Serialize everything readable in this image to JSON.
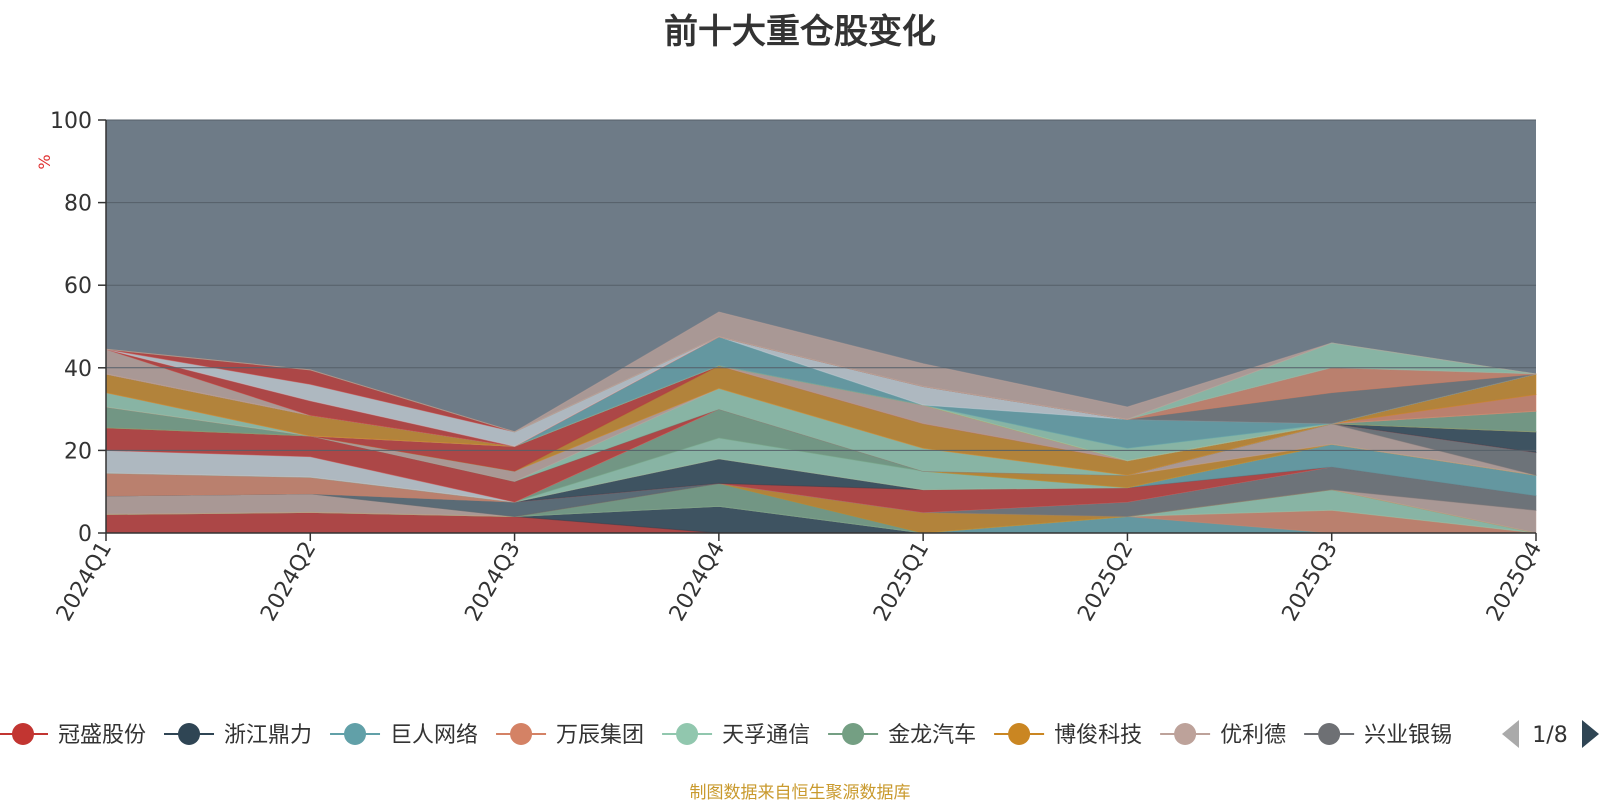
{
  "title": "前十大重仓股变化",
  "footer": "制图数据来自恒生聚源数据库",
  "legend_pager": {
    "text": "1/8"
  },
  "colors": {
    "plot_bg": "#6e7b87",
    "axis": "#333333",
    "unit": "#e03030",
    "footer": "#c99a2e"
  },
  "chart_data": {
    "type": "area",
    "stacked": true,
    "title": "前十大重仓股变化",
    "x": [
      "2024Q1",
      "2024Q2",
      "2024Q3",
      "2024Q4",
      "2025Q1",
      "2025Q2",
      "2025Q3",
      "2025Q4"
    ],
    "ylabel": "%",
    "ylim": [
      0,
      100
    ],
    "yticks": [
      0,
      20,
      40,
      60,
      80,
      100
    ],
    "grid": true,
    "legend_position": "bottom",
    "series": [
      {
        "name": "冠盛股份",
        "color": "#c23531",
        "values": [
          4.5,
          5.0,
          4.0,
          0,
          0,
          0,
          0,
          0
        ]
      },
      {
        "name": "浙江鼎力",
        "color": "#2f4554",
        "values": [
          0,
          0,
          0,
          6.5,
          0,
          0,
          0,
          0
        ]
      },
      {
        "name": "巨人网络",
        "color": "#61a0a8",
        "values": [
          0,
          0,
          0,
          0,
          0,
          4.0,
          0,
          0
        ]
      },
      {
        "name": "万辰集团",
        "color": "#d48265",
        "values": [
          0,
          0,
          0,
          0,
          0,
          0,
          5.5,
          0
        ]
      },
      {
        "name": "天孚通信",
        "color": "#91c7ae",
        "values": [
          0,
          0,
          0,
          0,
          0,
          0,
          5.0,
          0
        ]
      },
      {
        "name": "金龙汽车",
        "color": "#749f83",
        "values": [
          0,
          0,
          0,
          5.5,
          0,
          0,
          0,
          0
        ]
      },
      {
        "name": "博俊科技",
        "color": "#ca8622",
        "values": [
          0,
          0,
          0,
          0,
          5.0,
          0,
          0,
          0
        ]
      },
      {
        "name": "优利德",
        "color": "#bda29a",
        "values": [
          4.5,
          4.5,
          0,
          0,
          0,
          0,
          0,
          5.5
        ]
      },
      {
        "name": "兴业银锡",
        "color": "#6e7074",
        "values": [
          0,
          0,
          0,
          0,
          0,
          3.5,
          5.5,
          3.5
        ]
      },
      {
        "name": "",
        "color": "#546570",
        "values": [
          0,
          0,
          3.5,
          0,
          0,
          0,
          0,
          0
        ]
      },
      {
        "name": "",
        "color": "#c4ccd3",
        "values": [
          0,
          0,
          0,
          0,
          0,
          0,
          0,
          0
        ]
      },
      {
        "name": "",
        "color": "#c23531",
        "values": [
          0,
          0,
          0,
          0,
          5.5,
          3.5,
          0,
          0
        ]
      },
      {
        "name": "",
        "color": "#2f4554",
        "values": [
          0,
          0,
          0,
          6.0,
          0,
          0,
          0,
          0
        ]
      },
      {
        "name": "",
        "color": "#61a0a8",
        "values": [
          0,
          0,
          0,
          0,
          0,
          0,
          5.5,
          5.0
        ]
      },
      {
        "name": "",
        "color": "#d48265",
        "values": [
          5.5,
          4.0,
          0,
          0,
          0,
          0,
          0,
          0
        ]
      },
      {
        "name": "",
        "color": "#91c7ae",
        "values": [
          0,
          0,
          0,
          5.0,
          4.5,
          0,
          0,
          0
        ]
      },
      {
        "name": "",
        "color": "#749f83",
        "values": [
          0,
          0,
          0,
          7.0,
          0,
          0,
          0,
          0
        ]
      },
      {
        "name": "",
        "color": "#ca8622",
        "values": [
          0,
          0,
          0,
          0,
          0,
          3.0,
          0,
          0
        ]
      },
      {
        "name": "",
        "color": "#bda29a",
        "values": [
          0,
          0,
          0,
          0,
          0,
          0,
          5.0,
          0
        ]
      },
      {
        "name": "",
        "color": "#6e7074",
        "values": [
          0,
          0,
          0,
          0,
          0,
          0,
          0,
          5.5
        ]
      },
      {
        "name": "",
        "color": "#c4ccd3",
        "values": [
          5.5,
          5.0,
          0,
          0,
          0,
          0,
          0,
          0
        ]
      },
      {
        "name": "",
        "color": "#c23531",
        "values": [
          5.5,
          5.0,
          5.0,
          0,
          0,
          0,
          0,
          0
        ]
      },
      {
        "name": "",
        "color": "#2f4554",
        "values": [
          0,
          0,
          0,
          0,
          0,
          0,
          0,
          5.0
        ]
      },
      {
        "name": "",
        "color": "#91c7ae",
        "values": [
          0,
          0,
          0,
          5.0,
          5.5,
          0,
          0,
          0
        ]
      },
      {
        "name": "",
        "color": "#bda29a",
        "values": [
          0,
          0,
          2.5,
          0,
          0,
          0,
          0,
          0
        ]
      },
      {
        "name": "",
        "color": "#ca8622",
        "values": [
          0,
          0,
          0,
          5.5,
          6.0,
          3.5,
          0,
          0
        ]
      },
      {
        "name": "",
        "color": "#749f83",
        "values": [
          5.0,
          0,
          0,
          0,
          0,
          0,
          0,
          5.0
        ]
      },
      {
        "name": "",
        "color": "#c23531",
        "values": [
          0,
          0,
          6.0,
          0,
          0,
          0,
          0,
          0
        ]
      },
      {
        "name": "",
        "color": "#bda29a",
        "values": [
          0,
          0,
          0,
          0,
          4.5,
          0,
          0,
          0
        ]
      },
      {
        "name": "",
        "color": "#91c7ae",
        "values": [
          3.5,
          0,
          0,
          0,
          0,
          0,
          0,
          0
        ]
      },
      {
        "name": "",
        "color": "#d48265",
        "values": [
          0,
          0,
          0,
          0,
          0,
          0,
          0,
          4.0
        ]
      },
      {
        "name": "",
        "color": "#ca8622",
        "values": [
          4.5,
          5.0,
          0,
          0,
          0,
          0,
          0,
          5.0
        ]
      },
      {
        "name": "",
        "color": "#91c7ae",
        "values": [
          0,
          0,
          0,
          0,
          0,
          3.0,
          0,
          0
        ]
      },
      {
        "name": "",
        "color": "#61a0a8",
        "values": [
          0,
          0,
          0,
          7.0,
          0,
          7.0,
          0,
          0
        ]
      },
      {
        "name": "",
        "color": "#c4ccd3",
        "values": [
          0,
          0,
          0,
          0,
          4.5,
          0,
          0,
          0
        ]
      },
      {
        "name": "",
        "color": "#6e7074",
        "values": [
          0,
          0,
          0,
          0,
          0,
          0,
          7.5,
          0
        ]
      },
      {
        "name": "",
        "color": "#d48265",
        "values": [
          0,
          0,
          0,
          0,
          0,
          0,
          6.0,
          0
        ]
      },
      {
        "name": "",
        "color": "#bda29a",
        "values": [
          6.0,
          0,
          0,
          0,
          0,
          0,
          0,
          0
        ]
      },
      {
        "name": "",
        "color": "#c23531",
        "values": [
          0,
          3.5,
          0,
          0,
          0,
          0,
          0,
          0
        ]
      },
      {
        "name": "",
        "color": "#c4ccd3",
        "values": [
          0,
          4.0,
          3.5,
          0,
          0,
          0,
          0,
          0
        ]
      },
      {
        "name": "",
        "color": "#c23531",
        "values": [
          0,
          3.5,
          0,
          0,
          0,
          0,
          0,
          0
        ]
      },
      {
        "name": "",
        "color": "#91c7ae",
        "values": [
          0,
          0,
          0,
          0,
          0,
          0,
          6.0,
          0
        ]
      },
      {
        "name": "",
        "color": "#bda29a",
        "values": [
          0,
          0,
          0,
          6.0,
          5.5,
          3.0,
          0,
          0
        ]
      }
    ]
  }
}
